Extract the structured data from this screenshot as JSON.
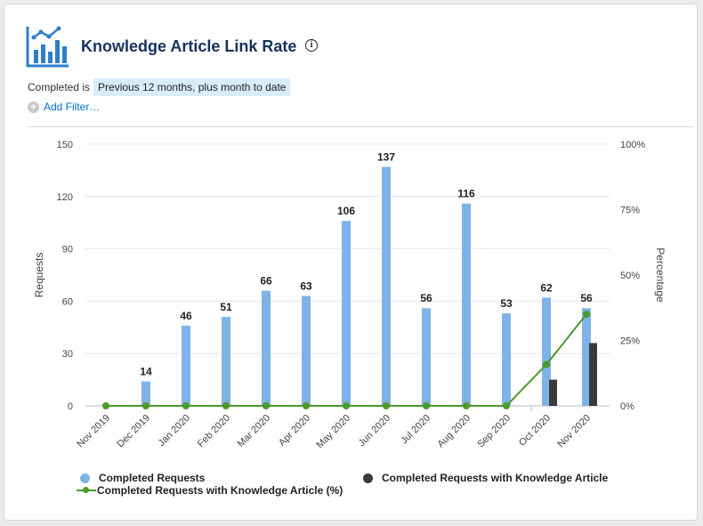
{
  "header": {
    "title": "Knowledge Article Link Rate",
    "info": "i",
    "icon": "report-chart-icon"
  },
  "filter": {
    "label": "Completed is",
    "value": "Previous 12 months, plus month to date",
    "add_label": "Add Filter…"
  },
  "colors": {
    "completed": "#7fb3e8",
    "with_ka": "#3a3a3a",
    "pct_line": "#4b9a2a",
    "title": "#16325c"
  },
  "chart_data": {
    "type": "bar",
    "categories": [
      "Nov 2019",
      "Dec 2019",
      "Jan 2020",
      "Feb 2020",
      "Mar 2020",
      "Apr 2020",
      "May 2020",
      "Jun 2020",
      "Jul 2020",
      "Aug 2020",
      "Sep 2020",
      "Oct 2020",
      "Nov 2020"
    ],
    "series": [
      {
        "name": "Completed Requests",
        "axis": "left",
        "values": [
          0,
          14,
          46,
          51,
          66,
          63,
          106,
          137,
          56,
          116,
          53,
          62,
          56
        ]
      },
      {
        "name": "Completed Requests with Knowledge Article",
        "axis": "left",
        "values": [
          0,
          0,
          0,
          0,
          0,
          0,
          0,
          0,
          0,
          0,
          0,
          15,
          36
        ]
      },
      {
        "name": "Completed Requests with Knowledge Article (%)",
        "type": "line",
        "axis": "right",
        "values": [
          0,
          0,
          0,
          0,
          0,
          0,
          0,
          0,
          0,
          0,
          0,
          15.8,
          35
        ]
      }
    ],
    "value_labels": [
      "",
      "14",
      "46",
      "51",
      "66",
      "63",
      "106",
      "137",
      "56",
      "116",
      "53",
      "62",
      "56"
    ],
    "ylabel": "Requests",
    "y2label": "Percentage",
    "ylim": [
      0,
      150
    ],
    "yticks": [
      "0",
      "30",
      "60",
      "90",
      "120",
      "150"
    ],
    "y2lim": [
      0,
      100
    ],
    "y2ticks": [
      "0%",
      "25%",
      "50%",
      "75%",
      "100%"
    ],
    "grid": true,
    "legend": [
      {
        "label": "Completed Requests"
      },
      {
        "label": "Completed Requests with Knowledge Article"
      },
      {
        "label": "Completed Requests with Knowledge Article (%)"
      }
    ]
  }
}
